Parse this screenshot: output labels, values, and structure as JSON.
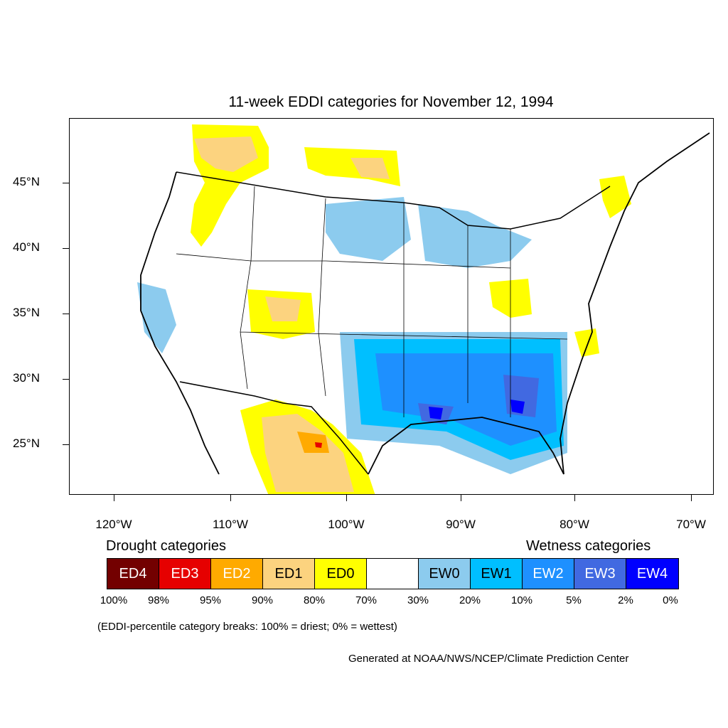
{
  "title": "11-week EDDI categories for November 12, 1994",
  "axes": {
    "lat_labels": [
      "45°N",
      "40°N",
      "35°N",
      "30°N",
      "25°N"
    ],
    "lon_labels": [
      "120°W",
      "110°W",
      "100°W",
      "90°W",
      "80°W",
      "70°W"
    ]
  },
  "legend": {
    "drought_heading": "Drought categories",
    "wetness_heading": "Wetness categories",
    "categories": [
      {
        "label": "ED4",
        "color": "#730000",
        "text_color": "#ffffff"
      },
      {
        "label": "ED3",
        "color": "#e60000",
        "text_color": "#ffffff"
      },
      {
        "label": "ED2",
        "color": "#ffaa00",
        "text_color": "#ffffff"
      },
      {
        "label": "ED1",
        "color": "#fcd37f",
        "text_color": "#000000"
      },
      {
        "label": "ED0",
        "color": "#ffff00",
        "text_color": "#000000"
      },
      {
        "label": "",
        "color": "#ffffff",
        "text_color": "#000000"
      },
      {
        "label": "EW0",
        "color": "#8ccbee",
        "text_color": "#000000"
      },
      {
        "label": "EW1",
        "color": "#00bfff",
        "text_color": "#000000"
      },
      {
        "label": "EW2",
        "color": "#1e90ff",
        "text_color": "#ffffff"
      },
      {
        "label": "EW3",
        "color": "#4169e1",
        "text_color": "#ffffff"
      },
      {
        "label": "EW4",
        "color": "#0000ff",
        "text_color": "#ffffff"
      }
    ],
    "breaks": [
      "100%",
      "98%",
      "95%",
      "90%",
      "80%",
      "70%",
      "30%",
      "20%",
      "10%",
      "5%",
      "2%",
      "0%"
    ]
  },
  "note": "(EDDI-percentile category breaks: 100% = driest; 0% = wettest)",
  "credit": "Generated at NOAA/NWS/NCEP/Climate Prediction Center"
}
